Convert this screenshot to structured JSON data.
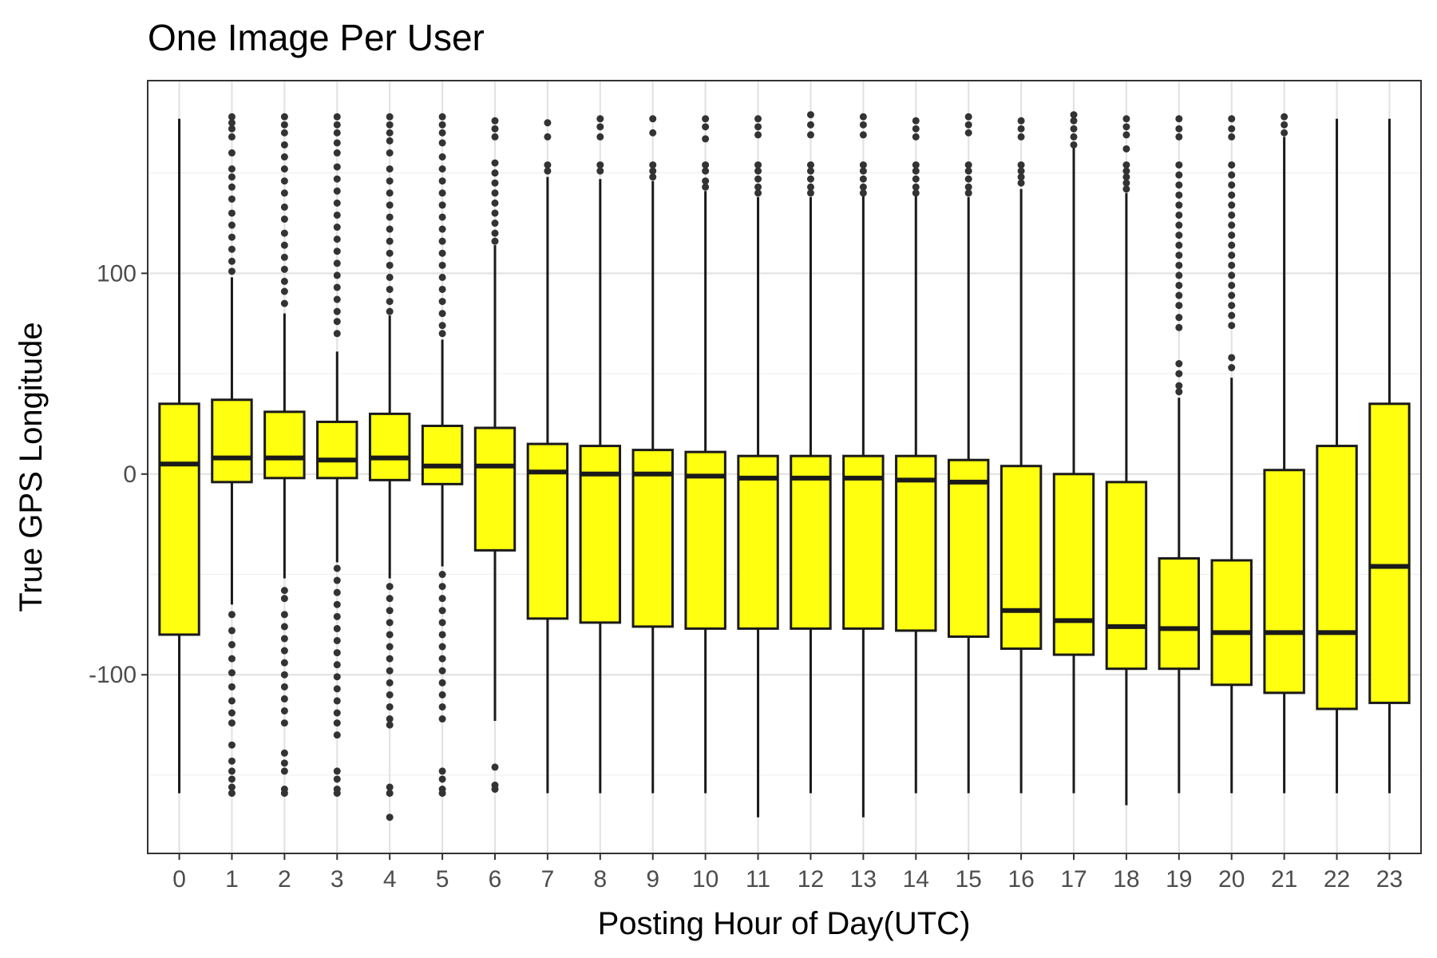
{
  "chart_data": {
    "type": "box",
    "title": "One Image Per User",
    "xlabel": "Posting Hour of Day(UTC)",
    "ylabel": "True GPS Longitude",
    "categories": [
      "0",
      "1",
      "2",
      "3",
      "4",
      "5",
      "6",
      "7",
      "8",
      "9",
      "10",
      "11",
      "12",
      "13",
      "14",
      "15",
      "16",
      "17",
      "18",
      "19",
      "20",
      "21",
      "22",
      "23"
    ],
    "ylim": [
      -189,
      196
    ],
    "y_ticks": [
      100,
      0,
      -100
    ],
    "y_tick_labels": [
      "100",
      "0",
      "-100"
    ],
    "grid": true,
    "fill_color": "#ffff10",
    "line_color": "#1a1a1a",
    "boxes": [
      {
        "q1": -80,
        "median": 5,
        "q3": 35,
        "whisker_low": -159,
        "whisker_high": 177
      },
      {
        "q1": -4,
        "median": 8,
        "q3": 37,
        "whisker_low": -65,
        "whisker_high": 98,
        "outliers_high": [
          178,
          175,
          172,
          168,
          160,
          152,
          148,
          143,
          137,
          130,
          124,
          118,
          112,
          106,
          101
        ],
        "outliers_low": [
          -70,
          -78,
          -85,
          -92,
          -99,
          -106,
          -113,
          -119,
          -124,
          -135,
          -143,
          -148,
          -152,
          -156,
          -159
        ]
      },
      {
        "q1": -2,
        "median": 8,
        "q3": 31,
        "whisker_low": -52,
        "whisker_high": 80,
        "outliers_high": [
          178,
          174,
          170,
          164,
          158,
          152,
          146,
          140,
          133,
          127,
          120,
          114,
          108,
          102,
          96,
          91,
          85
        ],
        "outliers_low": [
          -58,
          -62,
          -70,
          -76,
          -82,
          -88,
          -94,
          -100,
          -106,
          -112,
          -118,
          -124,
          -139,
          -144,
          -148,
          -157,
          -159
        ]
      },
      {
        "q1": -2,
        "median": 7,
        "q3": 26,
        "whisker_low": -44,
        "whisker_high": 61,
        "outliers_high": [
          178,
          174,
          170,
          165,
          160,
          153,
          147,
          141,
          135,
          129,
          123,
          117,
          111,
          105,
          99,
          93,
          87,
          81,
          76,
          70
        ],
        "outliers_low": [
          -47,
          -53,
          -59,
          -65,
          -71,
          -77,
          -83,
          -89,
          -95,
          -101,
          -107,
          -113,
          -119,
          -124,
          -130,
          -148,
          -152,
          -157,
          -159
        ]
      },
      {
        "q1": -3,
        "median": 8,
        "q3": 30,
        "whisker_low": -52,
        "whisker_high": 79,
        "outliers_high": [
          178,
          174,
          170,
          166,
          160,
          152,
          146,
          140,
          134,
          128,
          122,
          116,
          110,
          104,
          98,
          92,
          86,
          81
        ],
        "outliers_low": [
          -56,
          -62,
          -68,
          -74,
          -80,
          -86,
          -92,
          -98,
          -104,
          -110,
          -116,
          -122,
          -125,
          -156,
          -159,
          -171
        ]
      },
      {
        "q1": -5,
        "median": 4,
        "q3": 24,
        "whisker_low": -46,
        "whisker_high": 67,
        "outliers_high": [
          178,
          174,
          170,
          165,
          158,
          152,
          146,
          140,
          134,
          128,
          122,
          116,
          110,
          104,
          98,
          92,
          86,
          80,
          74,
          70
        ],
        "outliers_low": [
          -50,
          -56,
          -62,
          -68,
          -74,
          -80,
          -86,
          -92,
          -98,
          -104,
          -110,
          -116,
          -122,
          -148,
          -152,
          -157,
          -159
        ]
      },
      {
        "q1": -38,
        "median": 4,
        "q3": 23,
        "whisker_low": -123,
        "whisker_high": 114,
        "outliers_high": [
          176,
          172,
          168,
          155,
          150,
          145,
          140,
          135,
          130,
          125,
          120,
          116
        ],
        "outliers_low": [
          -146,
          -155,
          -157
        ]
      },
      {
        "q1": -72,
        "median": 1,
        "q3": 15,
        "whisker_low": -159,
        "whisker_high": 148,
        "outliers_high": [
          175,
          168,
          154,
          151
        ]
      },
      {
        "q1": -74,
        "median": 0,
        "q3": 14,
        "whisker_low": -159,
        "whisker_high": 147,
        "outliers_high": [
          177,
          173,
          168,
          154,
          151
        ]
      },
      {
        "q1": -76,
        "median": 0,
        "q3": 12,
        "whisker_low": -159,
        "whisker_high": 146,
        "outliers_high": [
          177,
          170,
          154,
          151,
          148
        ]
      },
      {
        "q1": -77,
        "median": -1,
        "q3": 11,
        "whisker_low": -159,
        "whisker_high": 141,
        "outliers_high": [
          177,
          173,
          167,
          154,
          151,
          146,
          143
        ]
      },
      {
        "q1": -77,
        "median": -2,
        "q3": 9,
        "whisker_low": -171,
        "whisker_high": 138,
        "outliers_high": [
          177,
          173,
          169,
          154,
          151,
          147,
          143,
          140
        ]
      },
      {
        "q1": -77,
        "median": -2,
        "q3": 9,
        "whisker_low": -159,
        "whisker_high": 138,
        "outliers_high": [
          179,
          174,
          169,
          154,
          151,
          147,
          143,
          140
        ]
      },
      {
        "q1": -77,
        "median": -2,
        "q3": 9,
        "whisker_low": -171,
        "whisker_high": 139,
        "outliers_high": [
          178,
          174,
          169,
          154,
          151,
          147,
          143,
          140
        ]
      },
      {
        "q1": -78,
        "median": -3,
        "q3": 9,
        "whisker_low": -159,
        "whisker_high": 139,
        "outliers_high": [
          176,
          172,
          168,
          154,
          151,
          147,
          143,
          140
        ]
      },
      {
        "q1": -81,
        "median": -4,
        "q3": 7,
        "whisker_low": -159,
        "whisker_high": 138,
        "outliers_high": [
          178,
          174,
          170,
          154,
          151,
          147,
          143,
          140
        ]
      },
      {
        "q1": -87,
        "median": -68,
        "q3": 4,
        "whisker_low": -159,
        "whisker_high": 142,
        "outliers_high": [
          176,
          172,
          168,
          154,
          151,
          148,
          145
        ]
      },
      {
        "q1": -90,
        "median": -73,
        "q3": 0,
        "whisker_low": -159,
        "whisker_high": 163,
        "outliers_high": [
          179,
          176,
          172,
          168,
          164
        ]
      },
      {
        "q1": -97,
        "median": -76,
        "q3": -4,
        "whisker_low": -165,
        "whisker_high": 140,
        "outliers_high": [
          177,
          173,
          169,
          162,
          154,
          151,
          148,
          145,
          142
        ]
      },
      {
        "q1": -97,
        "median": -77,
        "q3": -42,
        "whisker_low": -159,
        "whisker_high": 38,
        "outliers_high": [
          177,
          172,
          168,
          154,
          149,
          144,
          139,
          134,
          129,
          124,
          119,
          114,
          109,
          104,
          99,
          94,
          89,
          84,
          78,
          73,
          55,
          50,
          44,
          41
        ]
      },
      {
        "q1": -105,
        "median": -79,
        "q3": -43,
        "whisker_low": -159,
        "whisker_high": 48,
        "outliers_high": [
          177,
          172,
          168,
          154,
          149,
          144,
          139,
          134,
          129,
          124,
          119,
          114,
          109,
          104,
          99,
          94,
          89,
          84,
          79,
          74,
          58,
          53
        ]
      },
      {
        "q1": -109,
        "median": -79,
        "q3": 2,
        "whisker_low": -159,
        "whisker_high": 168,
        "outliers_high": [
          178,
          174,
          170
        ]
      },
      {
        "q1": -117,
        "median": -79,
        "q3": 14,
        "whisker_low": -159,
        "whisker_high": 177
      },
      {
        "q1": -114,
        "median": -46,
        "q3": 35,
        "whisker_low": -159,
        "whisker_high": 177
      }
    ]
  }
}
